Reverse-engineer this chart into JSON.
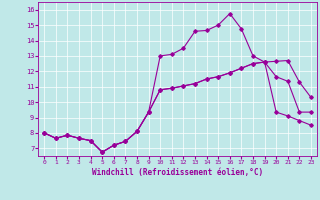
{
  "xlabel": "Windchill (Refroidissement éolien,°C)",
  "bg_color": "#c0e8e8",
  "line_color": "#990099",
  "xlim": [
    -0.5,
    23.5
  ],
  "ylim": [
    6.5,
    16.5
  ],
  "xticks": [
    0,
    1,
    2,
    3,
    4,
    5,
    6,
    7,
    8,
    9,
    10,
    11,
    12,
    13,
    14,
    15,
    16,
    17,
    18,
    19,
    20,
    21,
    22,
    23
  ],
  "yticks": [
    7,
    8,
    9,
    10,
    11,
    12,
    13,
    14,
    15,
    16
  ],
  "line1_x": [
    0,
    1,
    2,
    3,
    4,
    5,
    6,
    7,
    8,
    9,
    10,
    11,
    12,
    13,
    14,
    15,
    16,
    17,
    18,
    19,
    20,
    21,
    22,
    23
  ],
  "line1_y": [
    8.0,
    7.65,
    7.85,
    7.65,
    7.5,
    6.75,
    7.2,
    7.45,
    8.1,
    9.35,
    10.8,
    10.9,
    11.05,
    11.2,
    11.5,
    11.65,
    11.9,
    12.2,
    12.5,
    12.6,
    12.65,
    12.7,
    11.3,
    10.3
  ],
  "line2_x": [
    0,
    1,
    2,
    3,
    4,
    5,
    6,
    7,
    8,
    9,
    10,
    11,
    12,
    13,
    14,
    15,
    16,
    17,
    18,
    19,
    20,
    21,
    22,
    23
  ],
  "line2_y": [
    8.0,
    7.65,
    7.85,
    7.65,
    7.5,
    6.75,
    7.2,
    7.45,
    8.1,
    9.35,
    13.0,
    13.1,
    13.5,
    14.6,
    14.65,
    15.0,
    15.75,
    14.75,
    13.0,
    12.6,
    11.65,
    11.35,
    9.35,
    9.35
  ],
  "line3_x": [
    0,
    1,
    2,
    3,
    4,
    5,
    6,
    7,
    8,
    9,
    10,
    11,
    12,
    13,
    14,
    15,
    16,
    17,
    18,
    19,
    20,
    21,
    22,
    23
  ],
  "line3_y": [
    8.0,
    7.65,
    7.85,
    7.65,
    7.5,
    6.75,
    7.2,
    7.45,
    8.1,
    9.35,
    10.8,
    10.9,
    11.05,
    11.2,
    11.5,
    11.65,
    11.9,
    12.2,
    12.5,
    12.6,
    9.35,
    9.1,
    8.8,
    8.5
  ]
}
